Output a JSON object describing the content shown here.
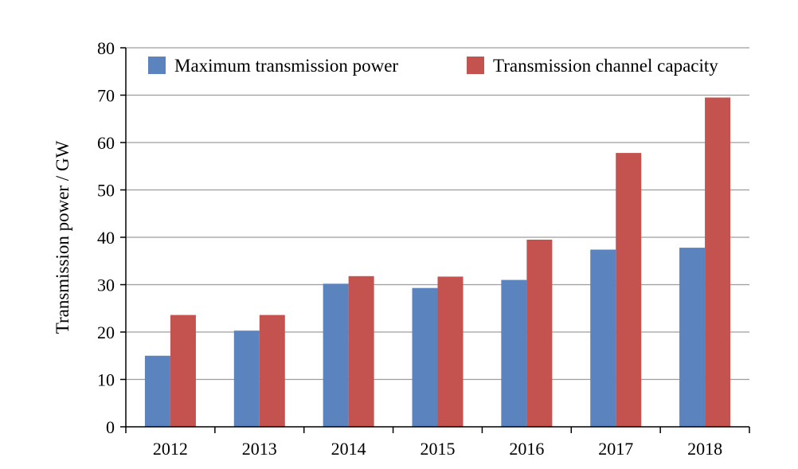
{
  "chart_data": {
    "type": "bar",
    "title": "",
    "xlabel": "",
    "ylabel": "Transmission power / GW",
    "ylim": [
      0,
      80
    ],
    "yticks": [
      0,
      10,
      20,
      30,
      40,
      50,
      60,
      70,
      80
    ],
    "grid": true,
    "legend": "top",
    "categories": [
      "2012",
      "2013",
      "2014",
      "2015",
      "2016",
      "2017",
      "2018"
    ],
    "series": [
      {
        "name": "Maximum transmission power",
        "color": "#5b84be",
        "values": [
          15,
          20.3,
          30.2,
          29.3,
          31,
          37.4,
          37.8
        ]
      },
      {
        "name": "Transmission channel capacity",
        "color": "#c4534f",
        "values": [
          23.6,
          23.6,
          31.8,
          31.7,
          39.5,
          57.8,
          69.5
        ]
      }
    ]
  }
}
